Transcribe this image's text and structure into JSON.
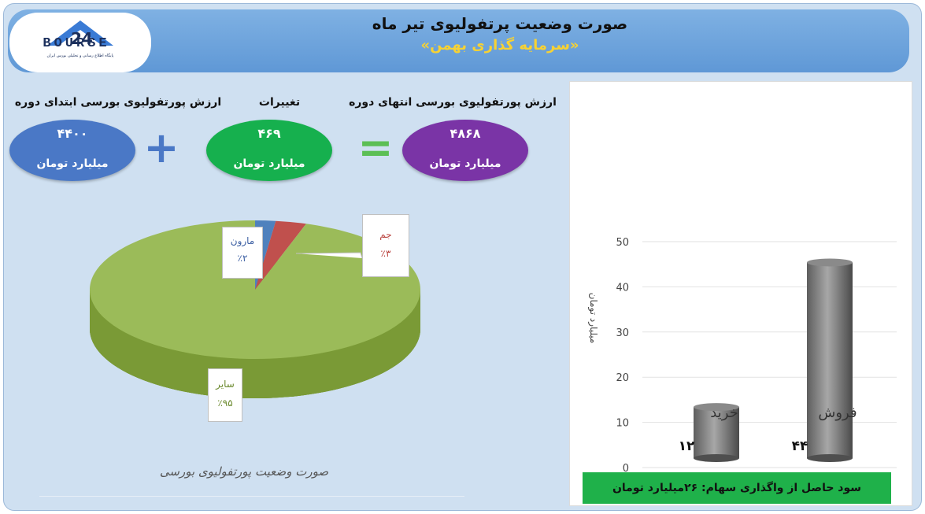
{
  "header": {
    "title": "صورت وضعیت پرتفولیوی تیر ماه",
    "subtitle": "«سرمایه گذاری بهمن»",
    "logo_text": "BOURSE",
    "logo_subtext": "پایگاه اطلاع رسانی و تحلیلی بورس ایران"
  },
  "summary": {
    "end_label": "ارزش پورتفولیوی بورسی انتهای دوره",
    "end_value": "۴۸۶۸",
    "change_label": "تغییرات",
    "change_value": "۴۶۹",
    "start_label": "ارزش پورتفولیوی بورسی ابتدای دوره",
    "start_value": "۴۴۰۰",
    "unit": "میلیارد تومان",
    "plus": "+",
    "equals": "="
  },
  "colors": {
    "start_ellipse": "#4a78c6",
    "change_ellipse": "#16b04e",
    "end_ellipse": "#7a34a6",
    "pie_other": "#9bbb59",
    "pie_maroon": "#4f81bd",
    "pie_jam": "#c0504d",
    "result_bg": "#1fb14a"
  },
  "pie_footer": "صورت وضعیت پورتفولیوی بورسی",
  "result_text": "سود حاصل از واگذاری سهام: ۲۶میلیارد تومان",
  "chart_data": [
    {
      "type": "pie",
      "categories": [
        "مارون",
        "جم",
        "سایر"
      ],
      "values": [
        2,
        3,
        95
      ],
      "value_labels": [
        "٪۲",
        "٪۳",
        "٪۹۵"
      ]
    },
    {
      "type": "bar",
      "categories": [
        "خرید",
        "فروش"
      ],
      "values": [
        12,
        44
      ],
      "value_labels": [
        "۱۲",
        "۴۴"
      ],
      "ylabel": "میلیارد تومان",
      "ylim": [
        0,
        50
      ],
      "yticks": [
        0,
        10,
        20,
        30,
        40,
        50
      ],
      "grid": true
    }
  ]
}
